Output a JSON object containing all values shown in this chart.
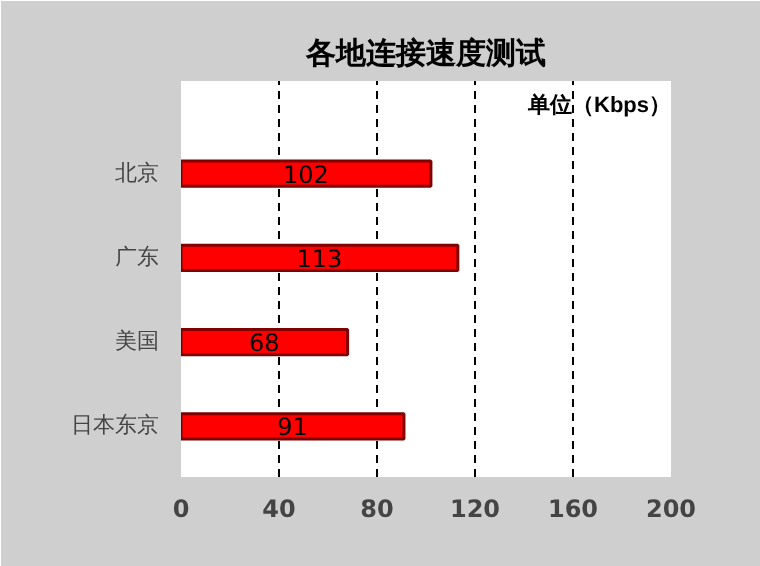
{
  "chart_data": {
    "type": "bar",
    "orientation": "horizontal",
    "title": "各地连接速度测试",
    "annotations": [
      "单位（Kbps）"
    ],
    "categories": [
      "北京",
      "广东",
      "美国",
      "日本东京"
    ],
    "values": [
      102,
      113,
      68,
      91
    ],
    "color": "#ff0000",
    "xlim": [
      0,
      200
    ],
    "xticks": [
      0,
      40,
      80,
      120,
      160,
      200
    ],
    "grid": "x",
    "data_labels": true
  }
}
